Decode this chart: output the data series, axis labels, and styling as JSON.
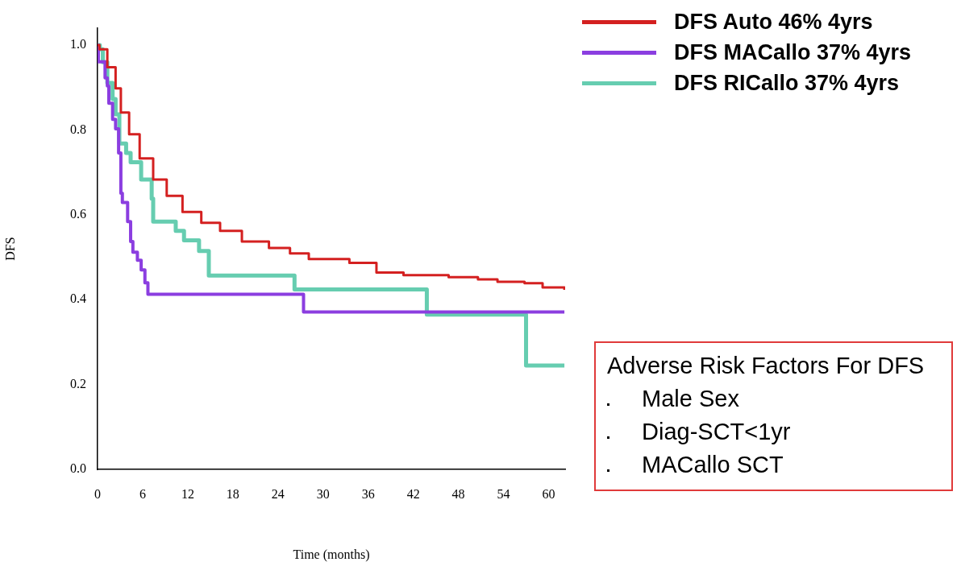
{
  "chart_data": {
    "type": "step",
    "xlabel": "Time (months)",
    "ylabel": "DFS",
    "xlim": [
      0,
      62.2
    ],
    "ylim": [
      0,
      1.04
    ],
    "xticks": [
      0,
      6,
      12,
      18,
      24,
      30,
      36,
      42,
      48,
      54,
      60
    ],
    "yticks": [
      {
        "value": 0,
        "label": "0.0"
      },
      0.2,
      0.4,
      0.6,
      0.8,
      {
        "value": 1,
        "label": "1.0"
      }
    ],
    "legend": "top right",
    "series": [
      {
        "name": "DFS Auto 46% 4yrs",
        "color": "#d42020",
        "x": [
          0,
          0.25,
          1.3,
          2.4,
          3.1,
          4.2,
          5.6,
          7.4,
          9.2,
          11.3,
          13.8,
          16.3,
          19.2,
          22.8,
          25.6,
          28.1,
          33.5,
          37.1,
          40.7,
          46.7,
          50.6,
          53.2,
          56.8,
          59.2,
          62.1
        ],
        "values": [
          1,
          0.99,
          0.948,
          0.898,
          0.841,
          0.79,
          0.733,
          0.683,
          0.645,
          0.607,
          0.581,
          0.562,
          0.537,
          0.522,
          0.509,
          0.496,
          0.487,
          0.464,
          0.458,
          0.453,
          0.448,
          0.442,
          0.439,
          0.429,
          0.423
        ]
      },
      {
        "name": "DFS MACallo 37% 4yrs",
        "color": "#8b3ee0",
        "x": [
          0,
          0.1,
          1.0,
          1.3,
          1.5,
          2.0,
          2.4,
          2.8,
          3.1,
          3.3,
          4.0,
          4.4,
          4.7,
          5.3,
          5.8,
          6.3,
          6.7,
          27.4,
          62.1
        ],
        "values": [
          1,
          0.961,
          0.923,
          0.904,
          0.863,
          0.825,
          0.803,
          0.746,
          0.651,
          0.629,
          0.584,
          0.537,
          0.512,
          0.493,
          0.47,
          0.44,
          0.413,
          0.371,
          0.371
        ]
      },
      {
        "name": "DFS RICallo 37% 4yrs",
        "color": "#66cdb0",
        "x": [
          0,
          0.3,
          0.7,
          1.3,
          2.0,
          2.4,
          2.9,
          3.8,
          4.4,
          5.8,
          7.2,
          7.4,
          10.4,
          11.5,
          13.5,
          14.8,
          26.2,
          43.8,
          57.0,
          62.1
        ],
        "values": [
          1,
          0.99,
          0.96,
          0.911,
          0.873,
          0.837,
          0.768,
          0.746,
          0.724,
          0.683,
          0.638,
          0.584,
          0.562,
          0.54,
          0.515,
          0.457,
          0.424,
          0.365,
          0.245,
          0.245
        ]
      }
    ],
    "annotations": [
      "Adverse Risk Factors For DFS",
      "Male Sex",
      "Diag-SCT<1yr",
      "MACallo SCT"
    ]
  }
}
